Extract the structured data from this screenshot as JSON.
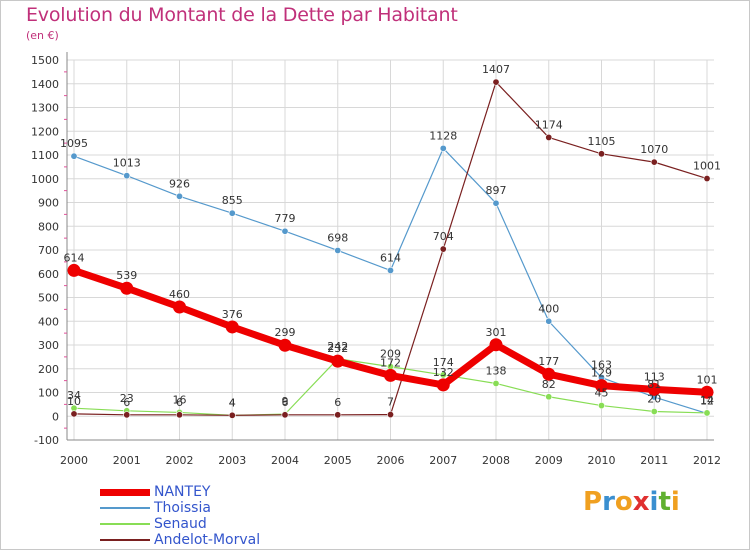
{
  "title": "Evolution du Montant de la Dette par Habitant",
  "subtitle": "(en €)",
  "logo": {
    "text": "Proxiti",
    "letters": [
      "P",
      "r",
      "o",
      "x",
      "i",
      "t",
      "i"
    ],
    "colors": [
      "#f0a020",
      "#3a8fd0",
      "#f0a020",
      "#e03030",
      "#3a8fd0",
      "#60b030",
      "#f0a020"
    ]
  },
  "chart_data": {
    "type": "line",
    "title": "Evolution du Montant de la Dette par Habitant",
    "ylabel": "(en €)",
    "xlabel": "",
    "ylim": [
      -100,
      1500
    ],
    "yticks": [
      -100,
      0,
      100,
      200,
      300,
      400,
      500,
      600,
      700,
      800,
      900,
      1000,
      1100,
      1200,
      1300,
      1400,
      1500
    ],
    "grid": true,
    "legend_position": "bottom-left",
    "categories": [
      "2000",
      "2001",
      "2002",
      "2003",
      "2004",
      "2005",
      "2006",
      "2007",
      "2008",
      "2009",
      "2010",
      "2011",
      "2012"
    ],
    "series": [
      {
        "name": "Thoissia",
        "color": "#5599cc",
        "width": 1.2,
        "values": [
          1095,
          1013,
          926,
          855,
          779,
          698,
          614,
          1128,
          897,
          400,
          163,
          81,
          12
        ]
      },
      {
        "name": "Senaud",
        "color": "#88dd55",
        "width": 1.2,
        "values": [
          34,
          23,
          16,
          4,
          9,
          242,
          209,
          174,
          138,
          82,
          45,
          20,
          14
        ]
      },
      {
        "name": "Andelot-Morval",
        "color": "#7a2020",
        "width": 1.2,
        "values": [
          10,
          6,
          6,
          4,
          6,
          6,
          7,
          704,
          1407,
          1174,
          1105,
          1070,
          1001
        ]
      },
      {
        "name": "NANTEY",
        "color": "#ee0000",
        "width": 7,
        "values": [
          614,
          539,
          460,
          376,
          299,
          232,
          172,
          132,
          301,
          177,
          129,
          113,
          101
        ]
      }
    ],
    "legend_order": [
      "NANTEY",
      "Thoissia",
      "Senaud",
      "Andelot-Morval"
    ]
  }
}
